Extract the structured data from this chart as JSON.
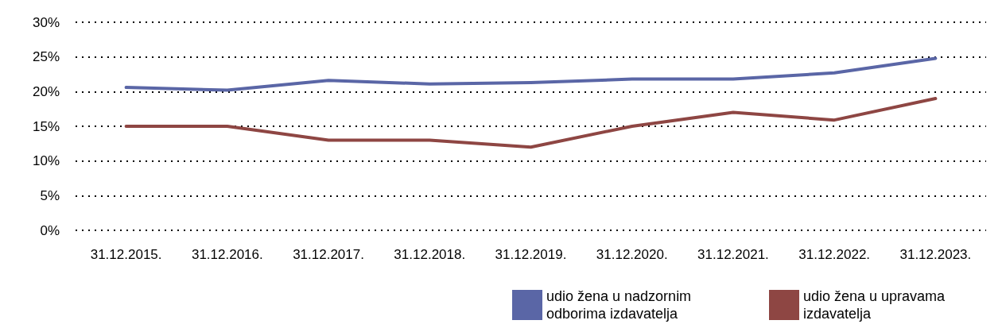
{
  "chart_data": {
    "type": "line",
    "categories": [
      "31.12.2015.",
      "31.12.2016.",
      "31.12.2017.",
      "31.12.2018.",
      "31.12.2019.",
      "31.12.2020.",
      "31.12.2021.",
      "31.12.2022.",
      "31.12.2023."
    ],
    "series": [
      {
        "name": "udio žena u nadzornim odborima izdavatelja",
        "color": "#5a66a6",
        "values": [
          20.6,
          20.2,
          21.6,
          21.1,
          21.3,
          21.8,
          21.8,
          22.7,
          24.8
        ]
      },
      {
        "name": "udio žena u upravama izdavatelja",
        "color": "#8e4643",
        "values": [
          15,
          15,
          13,
          13,
          12,
          15,
          17,
          15.9,
          19
        ]
      }
    ],
    "ylim": [
      0,
      30
    ],
    "yticks": [
      {
        "value": 0,
        "label": "0%"
      },
      {
        "value": 5,
        "label": "5%"
      },
      {
        "value": 10,
        "label": "10%"
      },
      {
        "value": 15,
        "label": "15%"
      },
      {
        "value": 20,
        "label": "20%"
      },
      {
        "value": 25,
        "label": "25%"
      },
      {
        "value": 30,
        "label": "30%"
      }
    ],
    "grid": "y",
    "legend": "bottom right",
    "marker": "none",
    "line_style": "solid"
  }
}
